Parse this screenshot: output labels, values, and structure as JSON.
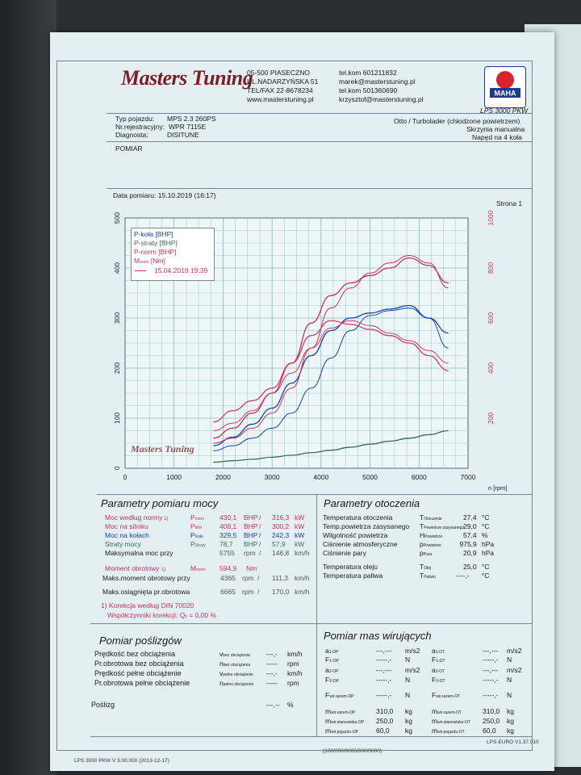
{
  "header": {
    "address": [
      "05-500 PIASECZNO",
      "UL.NADARZYŃSKA 51",
      "TEL/FAX 22-8678234",
      "www.masterstuning.pl"
    ],
    "contacts": [
      "tel.kom 601211832",
      "marek@masterstuning.pl",
      "tel.kom 501360690",
      "krzysztof@masterstuning.pl"
    ],
    "logo_text": "Masters Tuning",
    "maha_logo": "MAHA",
    "dyno_model": "LPS 3000 PKW"
  },
  "vehicle": {
    "type_label": "Typ pojazdu:",
    "type_value": "MPS 2.3 260PS",
    "reg_label": "Nr.rejestracyjny:",
    "reg_value": "WPR 7115E",
    "diag_label": "Diagnosta:",
    "diag_value": "DISITUNE",
    "engine": "Otto / Turbolader (chłodzone powietrzem)",
    "gearbox": "Skrzynia manualna",
    "drive": "Napęd na 4 koła",
    "measurement": "POMIAR"
  },
  "date_line": "Data pomiaru: 15.10.2019 (16:17)",
  "page_label": "Strona 1",
  "chart_data": {
    "type": "line",
    "xlabel": "n [rpm]",
    "xlim": [
      0,
      7000
    ],
    "ylim_left": [
      0,
      500
    ],
    "ylim_right": [
      0,
      1000
    ],
    "x_ticks": [
      "0",
      "1000",
      "2000",
      "3000",
      "4000",
      "5000",
      "6000",
      "7000"
    ],
    "y_ticks_left": [
      "0",
      "100",
      "200",
      "300",
      "400",
      "500"
    ],
    "y_ticks_right": [
      "200",
      "400",
      "600",
      "800",
      "1000"
    ],
    "legend": [
      "P-koła [BHP]",
      "P-straty [BHP]",
      "P-norm [BHP]",
      "M",
      "norm",
      "[Nm]",
      "15.04.2019 19:39"
    ],
    "legend_position": "top-left",
    "grid": true,
    "watermark": "Masters Tuning",
    "series": [
      {
        "name": "P-koła [BHP]",
        "color": "#1a3fb0",
        "axis": "left",
        "x": [
          1800,
          2200,
          2600,
          3000,
          3400,
          3800,
          4200,
          4600,
          5000,
          5400,
          5800,
          6200,
          6600
        ],
        "y": [
          45,
          62,
          88,
          120,
          170,
          225,
          275,
          300,
          310,
          318,
          325,
          300,
          270
        ]
      },
      {
        "name": "P-koła [BHP] (15.04.2019 19:39)",
        "color": "#1a3fb0",
        "axis": "left",
        "x": [
          1800,
          2200,
          2600,
          3000,
          3400,
          3800,
          4200,
          4600,
          5000,
          5400,
          5800,
          6200,
          6600
        ],
        "y": [
          35,
          45,
          60,
          80,
          110,
          160,
          220,
          275,
          305,
          315,
          320,
          300,
          240
        ]
      },
      {
        "name": "P-norm [BHP]",
        "color": "#c8325a",
        "axis": "left",
        "x": [
          1800,
          2200,
          2600,
          3000,
          3400,
          3800,
          4200,
          4600,
          5000,
          5400,
          5800,
          6200,
          6600
        ],
        "y": [
          60,
          80,
          110,
          150,
          210,
          290,
          345,
          370,
          385,
          400,
          420,
          405,
          370
        ]
      },
      {
        "name": "P-norm [BHP] (15.04.2019 19:39)",
        "color": "#c8325a",
        "axis": "left",
        "x": [
          1800,
          2200,
          2600,
          3000,
          3400,
          3800,
          4200,
          4600,
          5000,
          5400,
          5800,
          6200,
          6600
        ],
        "y": [
          50,
          60,
          80,
          110,
          160,
          240,
          320,
          360,
          390,
          410,
          425,
          410,
          360
        ]
      },
      {
        "name": "M norm [Nm]",
        "color": "#d23a6a",
        "axis": "right",
        "x": [
          1800,
          2200,
          2600,
          3000,
          3400,
          3800,
          4200,
          4600,
          5000,
          5400,
          5800,
          6200,
          6600
        ],
        "y": [
          185,
          230,
          270,
          320,
          420,
          530,
          590,
          575,
          555,
          530,
          500,
          450,
          390
        ]
      },
      {
        "name": "M norm [Nm] (15.04.2019 19:39)",
        "color": "#d23a6a",
        "axis": "right",
        "x": [
          1800,
          2200,
          2600,
          3000,
          3400,
          3800,
          4200,
          4600,
          5000,
          5400,
          5800,
          6200,
          6600
        ],
        "y": [
          150,
          180,
          230,
          300,
          380,
          480,
          560,
          590,
          570,
          540,
          510,
          470,
          420
        ]
      },
      {
        "name": "P-straty [BHP]",
        "color": "#3a6e5c",
        "axis": "left",
        "x": [
          1800,
          2200,
          2600,
          3000,
          3400,
          3800,
          4200,
          4600,
          5000,
          5400,
          5800,
          6200,
          6600
        ],
        "y": [
          12,
          15,
          18,
          22,
          26,
          31,
          36,
          42,
          48,
          54,
          60,
          67,
          75
        ]
      }
    ]
  },
  "power_params": {
    "title": "Parametry pomiaru mocy",
    "rows": [
      {
        "label": "Moc według normy",
        "mark": "1)",
        "sym": "P",
        "sub": "norm",
        "v1": "430,1",
        "u1": "BHP",
        "sep": "/",
        "v2": "316,3",
        "u2": "kW",
        "color": "red"
      },
      {
        "label": "Moc na silniku",
        "mark": "",
        "sym": "P",
        "sub": "Mot",
        "v1": "408,1",
        "u1": "BHP",
        "sep": "/",
        "v2": "300,2",
        "u2": "kW",
        "color": "red"
      },
      {
        "label": "Moc na kołach",
        "mark": "",
        "sym": "P",
        "sub": "Koła",
        "v1": "329,5",
        "u1": "BHP",
        "sep": "/",
        "v2": "242,3",
        "u2": "kW",
        "color": "blue"
      },
      {
        "label": "Straty mocy",
        "mark": "",
        "sym": "P",
        "sub": "Straty",
        "v1": "78,7",
        "u1": "BHP",
        "sep": "/",
        "v2": "57,9",
        "u2": "kW",
        "color": "green"
      },
      {
        "label": "Maksymalna moc przy",
        "mark": "",
        "sym": "",
        "sub": "",
        "v1": "5755",
        "u1": "rpm",
        "sep": "/",
        "v2": "146,8",
        "u2": "km/h",
        "color": "dark"
      }
    ],
    "torque_label": "Moment obrotowy",
    "torque_mark": "1)",
    "torque_sym": "M",
    "torque_sub": "norm",
    "torque_value": "594,9",
    "torque_unit": "Nm",
    "torque_at_label": "Maks.moment obrotowy przy",
    "torque_at_rpm": "4365",
    "torque_at_rpm_unit": "rpm",
    "torque_at_sep": "/",
    "torque_at_speed": "111,3",
    "torque_at_speed_unit": "km/h",
    "max_rpm_label": "Maks.osiągnięta pr.obrotowa",
    "max_rpm": "6665",
    "max_rpm_unit": "rpm",
    "max_rpm_sep": "/",
    "max_speed": "170,0",
    "max_speed_unit": "km/h",
    "correction": "1) Korekcja według DIN 70020",
    "coeff_label": "Współczynniki korekcji:",
    "coeff_sym": "Q",
    "coeff_sub": "v",
    "coeff_value": "= 0,00 %"
  },
  "ambient": {
    "title": "Parametry otoczenia",
    "rows": [
      {
        "label": "Temperatura otoczenia",
        "sym": "T",
        "sub": "Otoczenie",
        "value": "27,4",
        "unit": "°C"
      },
      {
        "label": "Temp.powietrza zasysanego",
        "sym": "T",
        "sub": "Powietrze zasysanego",
        "value": "29,0",
        "unit": "°C"
      },
      {
        "label": "Wilgotność powietrza",
        "sym": "H",
        "sub": "Powietrze",
        "value": "57,4",
        "unit": "%"
      },
      {
        "label": "Ciśnienie atmosferyczne",
        "sym": "p",
        "sub": "Powietrze",
        "value": "975,9",
        "unit": "hPa"
      },
      {
        "label": "Ciśnienie pary",
        "sym": "p",
        "sub": "Para",
        "value": "20,9",
        "unit": "hPa"
      },
      {
        "label": "Temperatura oleju",
        "sym": "T",
        "sub": "Olej",
        "value": "25,0",
        "unit": "°C"
      },
      {
        "label": "Temperatura paliwa",
        "sym": "T",
        "sub": "Paliwo",
        "value": "----,-",
        "unit": "°C"
      }
    ]
  },
  "slip": {
    "title": "Pomiar poślizgów",
    "rows": [
      {
        "label": "Prędkość bez obciążenia",
        "sym": "v",
        "sub": "bez obciążenia",
        "value": "---,-",
        "unit": "km/h"
      },
      {
        "label": "Pr.obrotowa bez obciążenia",
        "sym": "n",
        "sub": "bez obciążenia",
        "value": "-----",
        "unit": "rpm"
      },
      {
        "label": "Prędkość pełne obciążenie",
        "sym": "v",
        "sub": "pełne obciążenie",
        "value": "---,-",
        "unit": "km/h"
      },
      {
        "label": "Pr.obrotowa pełne obciążenie",
        "sym": "n",
        "sub": "pełne obciążenie",
        "value": "-----",
        "unit": "rpm"
      },
      {
        "label": "Poślizg",
        "sym": "",
        "sub": "",
        "value": "---,--",
        "unit": "%"
      }
    ]
  },
  "masses": {
    "title": "Pomiar mas wirujących",
    "rows": [
      {
        "l_sym": "a",
        "l_sub": "1-OP",
        "l_val": "---,---",
        "l_unit": "m/s2",
        "r_sym": "a",
        "r_sub": "1-OT",
        "r_val": "---,---",
        "r_unit": "m/s2"
      },
      {
        "l_sym": "F",
        "l_sub": "1-OP",
        "l_val": "-----,-",
        "l_unit": "N",
        "r_sym": "F",
        "r_sub": "1-OT",
        "r_val": "-----,-",
        "r_unit": "N"
      },
      {
        "l_sym": "a",
        "l_sub": "2-OP",
        "l_val": "---,---",
        "l_unit": "m/s2",
        "r_sym": "a",
        "r_sub": "2-OT",
        "r_val": "---,---",
        "r_unit": "m/s2"
      },
      {
        "l_sym": "F",
        "l_sub": "2-OP",
        "l_val": "-----,-",
        "l_unit": "N",
        "r_sym": "F",
        "r_sub": "2-OT",
        "r_val": "-----,-",
        "r_unit": "N"
      },
      {
        "l_sym": "F",
        "l_sub": "wir.razem-OP",
        "l_val": "-----,-",
        "l_unit": "N",
        "r_sym": "F",
        "r_sub": "wir.razem-OT",
        "r_val": "-----,-",
        "r_unit": "N"
      },
      {
        "l_sym": "m",
        "l_sub": "wir.razem-OP",
        "l_val": "310,0",
        "l_unit": "kg",
        "r_sym": "m",
        "r_sub": "wir.razem-OT",
        "r_val": "310,0",
        "r_unit": "kg"
      },
      {
        "l_sym": "m",
        "l_sub": "wir.stanowiska-OP",
        "l_val": "250,0",
        "l_unit": "kg",
        "r_sym": "m",
        "r_sub": "wir.stanowiska-OT",
        "r_val": "250,0",
        "r_unit": "kg"
      },
      {
        "l_sym": "m",
        "l_sub": "wir.pojazdu-OP",
        "l_val": "60,0",
        "l_unit": "kg",
        "r_sym": "m",
        "r_sub": "wir.pojazdu-OT",
        "r_val": "60,0",
        "r_unit": "kg"
      }
    ]
  },
  "footer": {
    "left": "LPS 3000 PKW V 3.00.000 (2013-12-17)",
    "middle": "(100/000/0000/000/0000)",
    "right": "LPS-EURO V1.37.010"
  }
}
